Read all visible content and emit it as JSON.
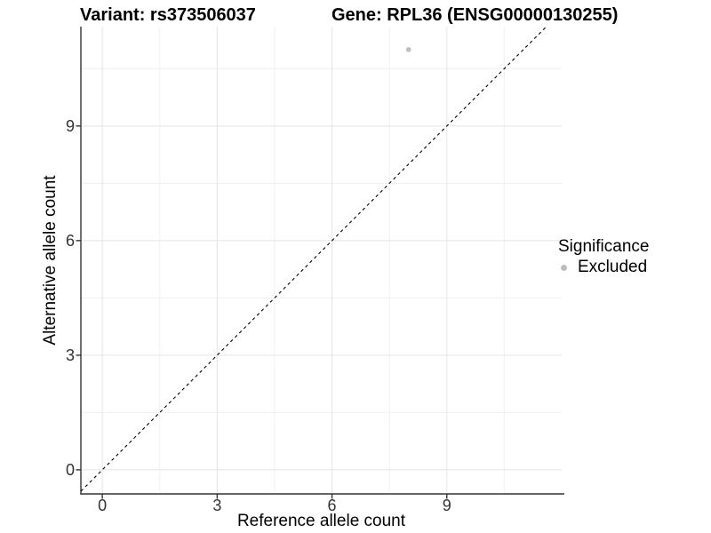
{
  "header": {
    "title_left": "Variant: rs373506037",
    "title_right": "Gene: RPL36 (ENSG00000130255)"
  },
  "chart_data": {
    "type": "scatter",
    "title_left": "Variant: rs373506037",
    "title_right": "Gene: RPL36 (ENSG00000130255)",
    "xlabel": "Reference allele count",
    "ylabel": "Alternative allele count",
    "xlim": [
      -0.56,
      12.0
    ],
    "ylim": [
      -0.63,
      11.6
    ],
    "x_major_ticks": [
      0,
      3,
      6,
      9
    ],
    "x_minor_ticks": [
      1.5,
      4.5,
      7.5,
      10.5
    ],
    "y_major_ticks": [
      0,
      3,
      6,
      9
    ],
    "y_minor_ticks": [
      1.5,
      4.5,
      7.5,
      10.5
    ],
    "grid": true,
    "series": [
      {
        "name": "Excluded",
        "color": "#BDBDBD",
        "points": [
          {
            "x": 8,
            "y": 11
          }
        ],
        "point_radius": 2.8
      }
    ],
    "reference_line": {
      "type": "identity",
      "slope": 1,
      "intercept": 0,
      "style": "dashed",
      "color": "#000000"
    },
    "legend": {
      "title": "Significance",
      "position": "right",
      "entries": [
        {
          "label": "Excluded",
          "color": "#BDBDBD"
        }
      ]
    },
    "colors": {
      "background": "#FFFFFF",
      "grid_major": "#E4E4E4",
      "grid_minor": "#F0F0F0",
      "axis_line": "#333333",
      "tick_mark": "#333333",
      "tick_text": "#333333",
      "title_text": "#000000"
    }
  }
}
